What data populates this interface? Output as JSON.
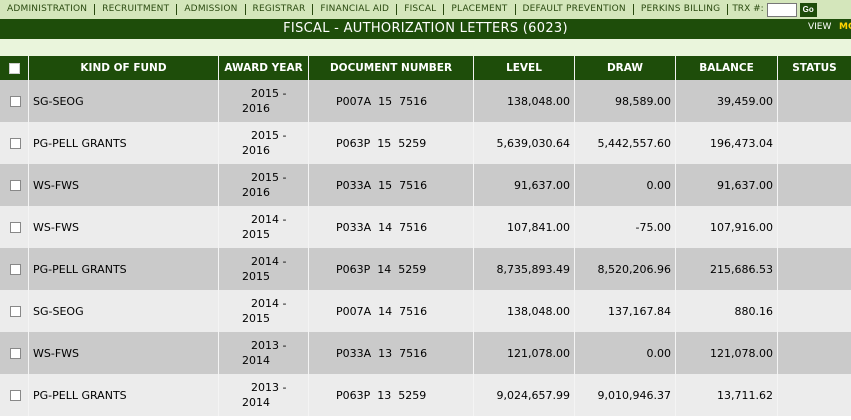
{
  "nav": {
    "items": [
      "ADMINISTRATION",
      "RECRUITMENT",
      "ADMISSION",
      "REGISTRAR",
      "FINANCIAL AID",
      "FISCAL",
      "PLACEMENT",
      "DEFAULT PREVENTION",
      "PERKINS BILLING"
    ],
    "trx_label": "TRX #:",
    "trx_value": "",
    "go_label": "Go"
  },
  "title": "FISCAL - AUTHORIZATION LETTERS (6023)",
  "view_label": "VIEW",
  "view_extra": "MO",
  "columns": {
    "kind_of_fund": "KIND OF FUND",
    "award_year": "AWARD YEAR",
    "document_number": "DOCUMENT NUMBER",
    "level": "LEVEL",
    "draw": "DRAW",
    "balance": "BALANCE",
    "status": "STATUS"
  },
  "rows": [
    {
      "fund": "SG-SEOG",
      "year1": "2015 -",
      "year2": "2016",
      "doc": "P007A  15  7516",
      "level": "138,048.00",
      "draw": "98,589.00",
      "balance": "39,459.00",
      "status": ""
    },
    {
      "fund": "PG-PELL GRANTS",
      "year1": "2015 -",
      "year2": "2016",
      "doc": "P063P  15  5259",
      "level": "5,639,030.64",
      "draw": "5,442,557.60",
      "balance": "196,473.04",
      "status": ""
    },
    {
      "fund": "WS-FWS",
      "year1": "2015 -",
      "year2": "2016",
      "doc": "P033A  15  7516",
      "level": "91,637.00",
      "draw": "0.00",
      "balance": "91,637.00",
      "status": ""
    },
    {
      "fund": "WS-FWS",
      "year1": "2014 -",
      "year2": "2015",
      "doc": "P033A  14  7516",
      "level": "107,841.00",
      "draw": "-75.00",
      "balance": "107,916.00",
      "status": ""
    },
    {
      "fund": "PG-PELL GRANTS",
      "year1": "2014 -",
      "year2": "2015",
      "doc": "P063P  14  5259",
      "level": "8,735,893.49",
      "draw": "8,520,206.96",
      "balance": "215,686.53",
      "status": ""
    },
    {
      "fund": "SG-SEOG",
      "year1": "2014 -",
      "year2": "2015",
      "doc": "P007A  14  7516",
      "level": "138,048.00",
      "draw": "137,167.84",
      "balance": "880.16",
      "status": ""
    },
    {
      "fund": "WS-FWS",
      "year1": "2013 -",
      "year2": "2014",
      "doc": "P033A  13  7516",
      "level": "121,078.00",
      "draw": "0.00",
      "balance": "121,078.00",
      "status": ""
    },
    {
      "fund": "PG-PELL GRANTS",
      "year1": "2013 -",
      "year2": "2014",
      "doc": "P063P  13  5259",
      "level": "9,024,657.99",
      "draw": "9,010,946.37",
      "balance": "13,711.62",
      "status": ""
    }
  ],
  "colors": {
    "header_green": "#1e4d0a",
    "nav_bg": "#d4e6bb",
    "row_dark": "#cacaca",
    "row_light": "#ececec"
  }
}
